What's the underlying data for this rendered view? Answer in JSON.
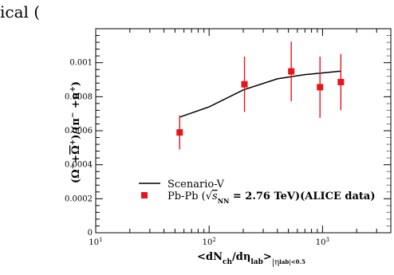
{
  "header_fragment": "ical (",
  "chart_data": {
    "type": "scatter",
    "xlabel_parts": {
      "lead": "<dN",
      "sub1": "ch",
      "mid": "/dη",
      "sub2": "lab",
      "tail": ">",
      "range": "|η",
      "range_sub": "lab|<0.5"
    },
    "ylabel_parts": {
      "lead": "(Ω",
      "sup1": "−",
      "plus": "+",
      "omegabar": "Ω",
      "sup2": "+",
      "mid": ")/(π",
      "sup3": "−",
      "plus2": " +π",
      "sup4": "+",
      "tail": ")"
    },
    "xscale": "log",
    "xlim": [
      10,
      4000
    ],
    "ylim": [
      0,
      0.0012
    ],
    "x_ticks": [
      {
        "value": 10,
        "base": "10",
        "exp": "1"
      },
      {
        "value": 100,
        "base": "10",
        "exp": "2"
      },
      {
        "value": 1000,
        "base": "10",
        "exp": "3"
      }
    ],
    "y_ticks": [
      {
        "value": 0,
        "label": "0"
      },
      {
        "value": 0.0002,
        "label": "0.0002"
      },
      {
        "value": 0.0004,
        "label": "0.0004"
      },
      {
        "value": 0.0006,
        "label": "0.0006"
      },
      {
        "value": 0.0008,
        "label": "0.0008"
      },
      {
        "value": 0.001,
        "label": "0.001"
      }
    ],
    "series": [
      {
        "name": "Scenario-V",
        "kind": "line",
        "color": "#000000",
        "x": [
          55,
          100,
          200,
          400,
          700,
          1000,
          1450
        ],
        "y": [
          0.00068,
          0.00074,
          0.00084,
          0.000905,
          0.00093,
          0.00094,
          0.00095
        ]
      },
      {
        "name_parts": {
          "lead": "Pb-Pb (√",
          "s": "s",
          "sub": "NN",
          "value": " = 2.76 TeV)",
          "tail": "(ALICE data)"
        },
        "kind": "points",
        "color": "#e8141a",
        "x": [
          55,
          205,
          530,
          950,
          1450
        ],
        "y": [
          0.00059,
          0.000873,
          0.000949,
          0.000856,
          0.000886
        ],
        "err": [
          0.0001,
          0.000163,
          0.000175,
          0.00018,
          0.000165
        ]
      }
    ],
    "legend_position": "center-right",
    "grid": false
  }
}
